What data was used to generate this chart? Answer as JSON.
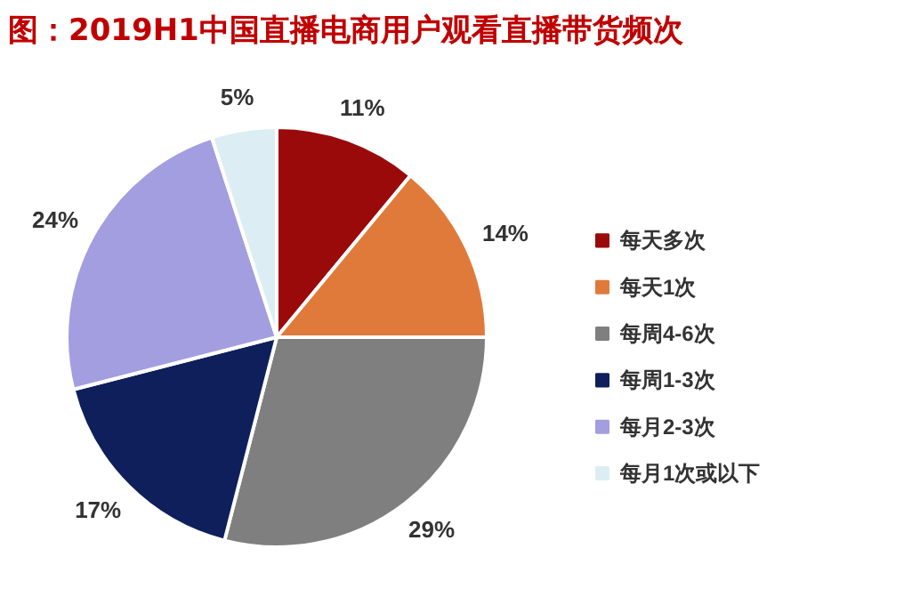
{
  "chart_data": {
    "type": "pie",
    "title": "图：2019H1中国直播电商用户观看直播带货频次",
    "categories": [
      "每天多次",
      "每天1次",
      "每周4-6次",
      "每周1-3次",
      "每月2-3次",
      "每月1次或以下"
    ],
    "values": [
      11,
      14,
      29,
      17,
      24,
      5
    ],
    "value_labels": [
      "11%",
      "14%",
      "29%",
      "17%",
      "24%",
      "5%"
    ],
    "colors": [
      "#9b0a0a",
      "#e07a3a",
      "#7f7f7f",
      "#0f1f5c",
      "#a39ee0",
      "#dceef4"
    ],
    "legend": "right"
  }
}
